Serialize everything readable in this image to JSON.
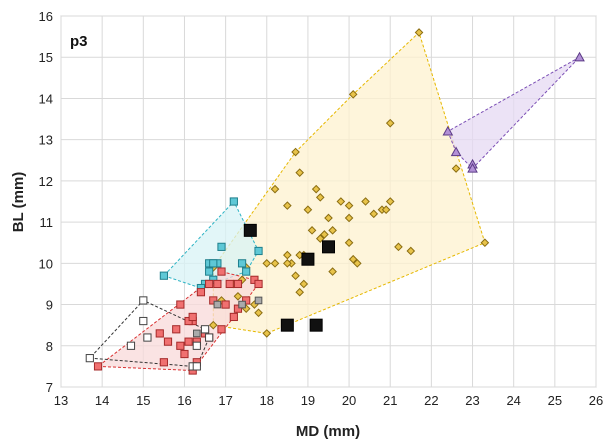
{
  "chart_data": {
    "type": "scatter",
    "title": "",
    "panel_label": "p3",
    "xlabel": "MD (mm)",
    "ylabel": "BL (mm)",
    "xlim": [
      13,
      26
    ],
    "ylim": [
      7,
      16
    ],
    "xticks": [
      "13",
      "14",
      "15",
      "16",
      "17",
      "18",
      "19",
      "20",
      "21",
      "22",
      "23",
      "24",
      "25",
      "26"
    ],
    "yticks": [
      "7",
      "8",
      "9",
      "10",
      "11",
      "12",
      "13",
      "14",
      "15",
      "16"
    ],
    "grid": true,
    "legend": "none",
    "series": [
      {
        "marker": "diamond",
        "fill": "#e8c34a",
        "stroke": "#8a6d12",
        "hull_fill": "#fdf1cf",
        "hull_stroke": "#e6b800",
        "points": [
          [
            21.7,
            15.6
          ],
          [
            20.1,
            14.1
          ],
          [
            21,
            13.4
          ],
          [
            22.6,
            12.3
          ],
          [
            18.7,
            12.7
          ],
          [
            18.8,
            12.2
          ],
          [
            18.2,
            11.8
          ],
          [
            19.2,
            11.8
          ],
          [
            19.3,
            11.6
          ],
          [
            18.5,
            11.4
          ],
          [
            19.8,
            11.5
          ],
          [
            20,
            11.4
          ],
          [
            20.4,
            11.5
          ],
          [
            20.6,
            11.2
          ],
          [
            20.8,
            11.3
          ],
          [
            20.9,
            11.3
          ],
          [
            21,
            11.5
          ],
          [
            19,
            11.3
          ],
          [
            19.5,
            11.1
          ],
          [
            20,
            11.1
          ],
          [
            19.1,
            10.8
          ],
          [
            19.6,
            10.8
          ],
          [
            19.4,
            10.7
          ],
          [
            19.3,
            10.6
          ],
          [
            20,
            10.5
          ],
          [
            21.2,
            10.4
          ],
          [
            21.5,
            10.3
          ],
          [
            23.3,
            10.5
          ],
          [
            18,
            10
          ],
          [
            18.2,
            10
          ],
          [
            18.5,
            10.2
          ],
          [
            18.6,
            10
          ],
          [
            18.9,
            10.2
          ],
          [
            18.8,
            10.2
          ],
          [
            20.1,
            10.1
          ],
          [
            20.2,
            10
          ],
          [
            18.5,
            10
          ],
          [
            18.7,
            9.7
          ],
          [
            19.6,
            9.8
          ],
          [
            17.5,
            9.9
          ],
          [
            16.7,
            9.9
          ],
          [
            18.9,
            9.5
          ],
          [
            17.2,
            9.5
          ],
          [
            17.4,
            9.6
          ],
          [
            18.8,
            9.3
          ],
          [
            17.3,
            9.2
          ],
          [
            17.7,
            9
          ],
          [
            17.5,
            8.9
          ],
          [
            17.8,
            8.8
          ],
          [
            16.7,
            8.5
          ],
          [
            18,
            8.3
          ],
          [
            16.9,
            9.1
          ]
        ]
      },
      {
        "marker": "triangle",
        "fill": "#b290d6",
        "stroke": "#5b3a86",
        "hull_fill": "#e5daf3",
        "hull_stroke": "#7b4fb5",
        "points": [
          [
            25.6,
            15
          ],
          [
            22.4,
            13.2
          ],
          [
            22.6,
            12.7
          ],
          [
            23,
            12.4
          ],
          [
            23,
            12.3
          ]
        ]
      },
      {
        "marker": "square",
        "fill": "#5ec8d6",
        "stroke": "#1f7f8c",
        "hull_fill": "#d8f3f6",
        "hull_stroke": "#2bb3c4",
        "points": [
          [
            17.2,
            11.5
          ],
          [
            16.9,
            10.4
          ],
          [
            17.8,
            10.3
          ],
          [
            15.5,
            9.7
          ],
          [
            16.6,
            10
          ],
          [
            16.8,
            10
          ],
          [
            16.7,
            10
          ],
          [
            16.6,
            9.8
          ],
          [
            17.4,
            10
          ],
          [
            16.5,
            9.5
          ],
          [
            16.7,
            9.6
          ],
          [
            17.5,
            9.8
          ],
          [
            16.4,
            9.4
          ]
        ]
      },
      {
        "marker": "square",
        "fill": "#f07070",
        "stroke": "#a52a2a",
        "hull_fill": "#f8dada",
        "hull_stroke": "#d93030",
        "points": [
          [
            13.9,
            7.5
          ],
          [
            15.5,
            7.6
          ],
          [
            16.2,
            7.4
          ],
          [
            16.3,
            7.6
          ],
          [
            15.6,
            8.1
          ],
          [
            15.8,
            8.4
          ],
          [
            15.9,
            8
          ],
          [
            16,
            7.8
          ],
          [
            16.1,
            8.1
          ],
          [
            16.2,
            8.6
          ],
          [
            16.3,
            8.1
          ],
          [
            16.6,
            8.2
          ],
          [
            16.9,
            8.4
          ],
          [
            17,
            9
          ],
          [
            17.2,
            8.7
          ],
          [
            16.5,
            8.3
          ],
          [
            15.4,
            8.3
          ],
          [
            15.9,
            9
          ],
          [
            16.1,
            8.6
          ],
          [
            16.4,
            9.3
          ],
          [
            16.6,
            9.5
          ],
          [
            16.8,
            9.5
          ],
          [
            17.1,
            9.5
          ],
          [
            17.3,
            9.5
          ],
          [
            17.7,
            9.6
          ],
          [
            17.8,
            9.5
          ],
          [
            17.5,
            9.1
          ],
          [
            17.3,
            8.9
          ],
          [
            16.7,
            9.1
          ],
          [
            16.9,
            9.8
          ],
          [
            16.2,
            8.7
          ]
        ]
      },
      {
        "marker": "square",
        "fill": "#ffffff",
        "stroke": "#444444",
        "hull_fill": "none",
        "hull_stroke": "#333333",
        "points": [
          [
            13.7,
            7.7
          ],
          [
            15,
            9.1
          ],
          [
            15,
            8.6
          ],
          [
            14.7,
            8
          ],
          [
            15.1,
            8.2
          ],
          [
            16.2,
            7.5
          ],
          [
            16.3,
            7.5
          ],
          [
            16.3,
            8
          ],
          [
            16.6,
            8.2
          ],
          [
            16.5,
            8.4
          ]
        ]
      },
      {
        "marker": "bigsquare",
        "fill": "#111111",
        "stroke": "#000000",
        "hull_fill": "none",
        "hull_stroke": "none",
        "points": [
          [
            17.6,
            10.8
          ],
          [
            19,
            10.1
          ],
          [
            19.5,
            10.4
          ],
          [
            18.5,
            8.5
          ],
          [
            19.2,
            8.5
          ]
        ]
      },
      {
        "marker": "small-square",
        "fill": "#aaaaaa",
        "stroke": "#555555",
        "hull_fill": "none",
        "hull_stroke": "none",
        "points": [
          [
            16.3,
            8.3
          ],
          [
            16.8,
            9
          ],
          [
            17.4,
            9
          ],
          [
            17.8,
            9.1
          ]
        ]
      }
    ]
  }
}
